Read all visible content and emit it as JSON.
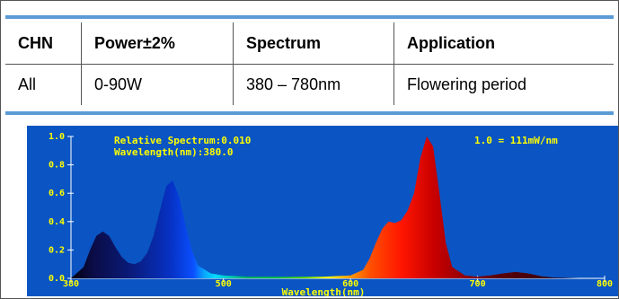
{
  "table": {
    "headers": [
      "CHN",
      "Power±2%",
      "Spectrum",
      "Application"
    ],
    "rows": [
      [
        "All",
        "0-90W",
        "380 – 780nm",
        "Flowering period"
      ]
    ]
  },
  "chart_data": {
    "type": "area",
    "annotations": [
      "Relative Spectrum:0.010",
      "Wavelength(nm):380.0",
      "1.0 = 111mW/nm"
    ],
    "xlabel": "Wavelength(nm)",
    "ylabel": "",
    "xlim": [
      380,
      800
    ],
    "ylim": [
      0,
      1.0
    ],
    "x_ticks": [
      "380",
      "500",
      "600",
      "700",
      "800"
    ],
    "y_ticks": [
      "0.0",
      "0.2",
      "0.4",
      "0.6",
      "0.8",
      "1.0"
    ],
    "x": [
      380,
      390,
      395,
      400,
      405,
      410,
      415,
      420,
      425,
      430,
      435,
      440,
      445,
      450,
      455,
      460,
      465,
      470,
      475,
      480,
      490,
      500,
      520,
      550,
      580,
      600,
      610,
      615,
      620,
      625,
      630,
      635,
      640,
      645,
      650,
      655,
      660,
      665,
      670,
      675,
      680,
      690,
      700,
      710,
      720,
      730,
      740,
      750,
      760,
      780,
      800
    ],
    "values": [
      0.0,
      0.08,
      0.2,
      0.3,
      0.33,
      0.3,
      0.22,
      0.15,
      0.11,
      0.1,
      0.12,
      0.18,
      0.3,
      0.48,
      0.65,
      0.69,
      0.58,
      0.38,
      0.2,
      0.09,
      0.035,
      0.02,
      0.012,
      0.01,
      0.012,
      0.02,
      0.06,
      0.14,
      0.25,
      0.35,
      0.4,
      0.39,
      0.41,
      0.48,
      0.6,
      0.85,
      1.0,
      0.93,
      0.6,
      0.25,
      0.08,
      0.02,
      0.012,
      0.02,
      0.035,
      0.045,
      0.035,
      0.015,
      0.005,
      0.0,
      0.0
    ],
    "colors": {
      "background": "#0a55c3",
      "text": "#ffff00",
      "axis": "#ffffff"
    }
  }
}
